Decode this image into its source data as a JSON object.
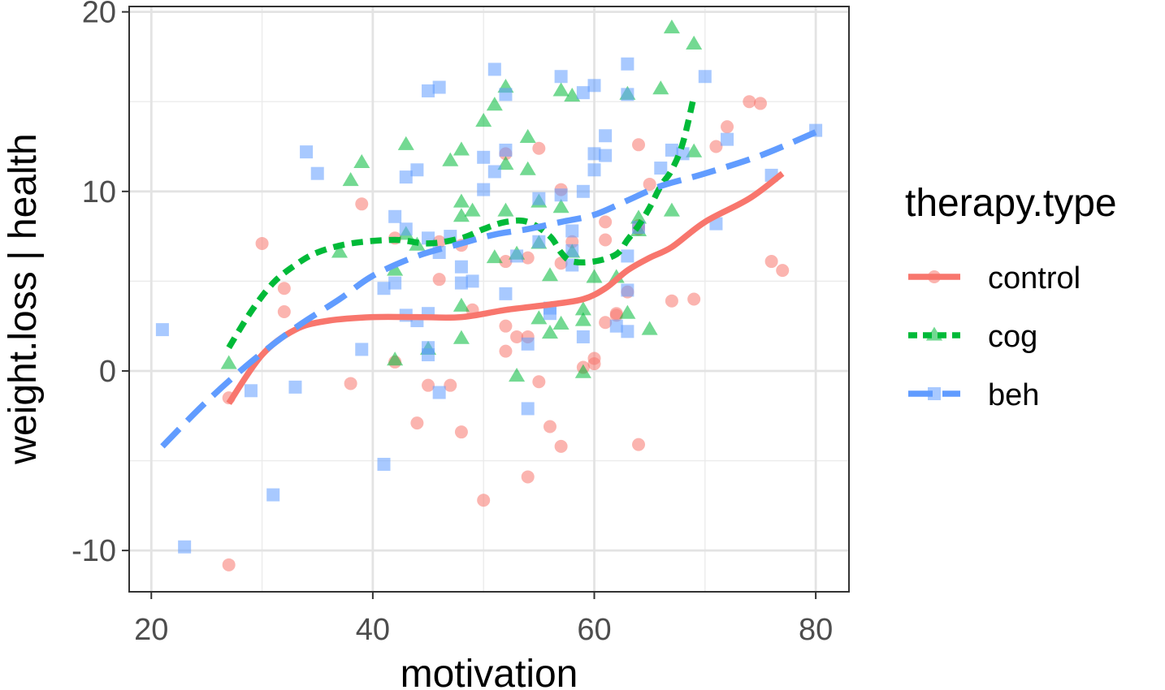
{
  "chart_data": {
    "type": "scatter",
    "title": "",
    "xlabel": "motivation",
    "ylabel": "weight.loss | health",
    "xlim": [
      18,
      83
    ],
    "ylim": [
      -12.3,
      20.3
    ],
    "xticks": [
      20,
      40,
      60,
      80
    ],
    "yticks": [
      -10,
      0,
      10,
      20
    ],
    "xtick_labels": [
      "20",
      "40",
      "60",
      "80"
    ],
    "ytick_labels": [
      "-10",
      "0",
      "10",
      "20"
    ],
    "grid": true,
    "legend": {
      "title": "therapy.type",
      "placement": "right"
    },
    "series": [
      {
        "name": "control",
        "color": "#F8766D",
        "marker": "circle",
        "line_style": "solid",
        "points": [
          [
            27,
            -10.8
          ],
          [
            27,
            -1.5
          ],
          [
            30,
            7.1
          ],
          [
            32,
            4.6
          ],
          [
            32,
            3.3
          ],
          [
            38,
            -0.7
          ],
          [
            39,
            9.3
          ],
          [
            42,
            7.4
          ],
          [
            42,
            0.5
          ],
          [
            44,
            -2.9
          ],
          [
            45,
            -0.8
          ],
          [
            46,
            7.2
          ],
          [
            46,
            5.1
          ],
          [
            47,
            -0.8
          ],
          [
            48,
            7.0
          ],
          [
            48,
            -3.4
          ],
          [
            49,
            3.4
          ],
          [
            50,
            -7.2
          ],
          [
            52,
            12.1
          ],
          [
            52,
            6.1
          ],
          [
            52,
            2.5
          ],
          [
            52,
            1.1
          ],
          [
            53,
            1.9
          ],
          [
            54,
            1.9
          ],
          [
            54,
            6.3
          ],
          [
            54,
            -5.9
          ],
          [
            55,
            12.4
          ],
          [
            55,
            -0.6
          ],
          [
            56,
            -3.1
          ],
          [
            57,
            10.1
          ],
          [
            57,
            6.0
          ],
          [
            57,
            -4.2
          ],
          [
            58,
            7.2
          ],
          [
            59,
            0.2
          ],
          [
            60,
            0.7
          ],
          [
            60,
            0.4
          ],
          [
            61,
            8.3
          ],
          [
            61,
            7.3
          ],
          [
            61,
            2.7
          ],
          [
            62,
            3.2
          ],
          [
            62,
            3.1
          ],
          [
            63,
            4.4
          ],
          [
            64,
            12.6
          ],
          [
            64,
            8.1
          ],
          [
            64,
            7.9
          ],
          [
            64,
            -4.1
          ],
          [
            65,
            10.4
          ],
          [
            67,
            3.9
          ],
          [
            69,
            4.0
          ],
          [
            71,
            12.5
          ],
          [
            72,
            13.6
          ],
          [
            74,
            15.0
          ],
          [
            75,
            14.9
          ],
          [
            76,
            6.1
          ],
          [
            77,
            5.6
          ]
        ],
        "trend": [
          [
            27,
            -1.8
          ],
          [
            30,
            0.9
          ],
          [
            33,
            2.3
          ],
          [
            36,
            2.8
          ],
          [
            40,
            3.0
          ],
          [
            44,
            3.0
          ],
          [
            48,
            3.0
          ],
          [
            52,
            3.4
          ],
          [
            56,
            3.7
          ],
          [
            59,
            4.0
          ],
          [
            61,
            4.6
          ],
          [
            63,
            5.6
          ],
          [
            65,
            6.3
          ],
          [
            67,
            6.9
          ],
          [
            70,
            8.3
          ],
          [
            74,
            9.6
          ],
          [
            77,
            11.0
          ]
        ]
      },
      {
        "name": "cog",
        "color": "#00BA38",
        "marker": "triangle",
        "line_style": "dashed",
        "points": [
          [
            27,
            0.4
          ],
          [
            37,
            6.6
          ],
          [
            38,
            10.6
          ],
          [
            39,
            11.6
          ],
          [
            42,
            5.6
          ],
          [
            42,
            0.6
          ],
          [
            43,
            12.6
          ],
          [
            43,
            7.6
          ],
          [
            44,
            7.0
          ],
          [
            45,
            1.2
          ],
          [
            47,
            11.7
          ],
          [
            48,
            12.3
          ],
          [
            48,
            9.4
          ],
          [
            48,
            8.6
          ],
          [
            48,
            3.6
          ],
          [
            48,
            1.8
          ],
          [
            49,
            8.9
          ],
          [
            50,
            13.9
          ],
          [
            51,
            14.8
          ],
          [
            51,
            6.3
          ],
          [
            52,
            15.8
          ],
          [
            52,
            11.5
          ],
          [
            52,
            8.9
          ],
          [
            53,
            6.5
          ],
          [
            53,
            -0.3
          ],
          [
            54,
            13.0
          ],
          [
            54,
            11.2
          ],
          [
            55,
            9.4
          ],
          [
            55,
            7.1
          ],
          [
            55,
            2.9
          ],
          [
            56,
            5.3
          ],
          [
            56,
            2.1
          ],
          [
            57,
            15.6
          ],
          [
            57,
            9.1
          ],
          [
            57,
            2.6
          ],
          [
            58,
            15.3
          ],
          [
            58,
            6.6
          ],
          [
            59,
            3.4
          ],
          [
            59,
            2.8
          ],
          [
            59,
            -0.1
          ],
          [
            60,
            5.2
          ],
          [
            62,
            5.2
          ],
          [
            63,
            15.4
          ],
          [
            63,
            3.2
          ],
          [
            64,
            8.5
          ],
          [
            64,
            7.8
          ],
          [
            65,
            2.3
          ],
          [
            66,
            15.7
          ],
          [
            67,
            19.1
          ],
          [
            67,
            8.9
          ],
          [
            69,
            18.2
          ],
          [
            69,
            12.2
          ]
        ],
        "trend": [
          [
            27,
            1.3
          ],
          [
            29,
            3.3
          ],
          [
            31,
            4.9
          ],
          [
            33,
            5.9
          ],
          [
            35,
            6.6
          ],
          [
            38,
            7.1
          ],
          [
            42,
            7.3
          ],
          [
            45,
            7.1
          ],
          [
            48,
            7.4
          ],
          [
            50,
            7.9
          ],
          [
            52,
            8.3
          ],
          [
            54,
            8.3
          ],
          [
            56,
            7.5
          ],
          [
            57,
            6.6
          ],
          [
            58,
            6.1
          ],
          [
            60,
            6.1
          ],
          [
            62,
            6.5
          ],
          [
            63,
            7.3
          ],
          [
            64,
            8.1
          ],
          [
            65,
            9.1
          ],
          [
            66,
            10.3
          ],
          [
            67,
            11.2
          ],
          [
            68,
            12.7
          ],
          [
            69,
            15.3
          ]
        ]
      },
      {
        "name": "beh",
        "color": "#619CFF",
        "marker": "square",
        "line_style": "longdash",
        "points": [
          [
            21,
            2.3
          ],
          [
            23,
            -9.8
          ],
          [
            29,
            -1.1
          ],
          [
            31,
            -6.9
          ],
          [
            33,
            -0.9
          ],
          [
            34,
            12.2
          ],
          [
            35,
            11.0
          ],
          [
            39,
            1.2
          ],
          [
            41,
            4.6
          ],
          [
            41,
            -5.2
          ],
          [
            42,
            8.6
          ],
          [
            42,
            4.9
          ],
          [
            43,
            10.8
          ],
          [
            43,
            7.9
          ],
          [
            43,
            3.1
          ],
          [
            44,
            11.2
          ],
          [
            44,
            2.8
          ],
          [
            45,
            15.6
          ],
          [
            45,
            7.4
          ],
          [
            45,
            3.2
          ],
          [
            45,
            1.3
          ],
          [
            45,
            0.9
          ],
          [
            46,
            15.8
          ],
          [
            46,
            6.6
          ],
          [
            46,
            -1.2
          ],
          [
            47,
            7.5
          ],
          [
            48,
            5.8
          ],
          [
            48,
            4.9
          ],
          [
            49,
            5.0
          ],
          [
            50,
            11.9
          ],
          [
            50,
            10.1
          ],
          [
            51,
            16.8
          ],
          [
            51,
            11.1
          ],
          [
            52,
            15.4
          ],
          [
            52,
            12.3
          ],
          [
            52,
            4.3
          ],
          [
            53,
            6.4
          ],
          [
            54,
            1.5
          ],
          [
            54,
            -2.1
          ],
          [
            55,
            7.2
          ],
          [
            55,
            9.6
          ],
          [
            56,
            3.5
          ],
          [
            56,
            3.2
          ],
          [
            57,
            16.4
          ],
          [
            57,
            9.8
          ],
          [
            58,
            7.8
          ],
          [
            58,
            6.7
          ],
          [
            58,
            5.9
          ],
          [
            59,
            15.5
          ],
          [
            59,
            10.0
          ],
          [
            59,
            1.9
          ],
          [
            60,
            15.9
          ],
          [
            60,
            12.1
          ],
          [
            61,
            13.1
          ],
          [
            61,
            12.0
          ],
          [
            60,
            11.2
          ],
          [
            62,
            2.5
          ],
          [
            63,
            17.1
          ],
          [
            63,
            15.4
          ],
          [
            63,
            6.4
          ],
          [
            63,
            4.5
          ],
          [
            63,
            2.2
          ],
          [
            64,
            8.0
          ],
          [
            66,
            11.3
          ],
          [
            67,
            12.3
          ],
          [
            68,
            12.1
          ],
          [
            70,
            16.4
          ],
          [
            71,
            8.2
          ],
          [
            72,
            12.9
          ],
          [
            76,
            10.9
          ],
          [
            80,
            13.4
          ]
        ],
        "trend": [
          [
            21,
            -4.2
          ],
          [
            25,
            -1.7
          ],
          [
            29,
            0.5
          ],
          [
            33,
            2.4
          ],
          [
            37,
            4.0
          ],
          [
            40,
            5.3
          ],
          [
            44,
            6.4
          ],
          [
            48,
            7.1
          ],
          [
            51,
            7.6
          ],
          [
            54,
            7.9
          ],
          [
            57,
            8.3
          ],
          [
            60,
            8.7
          ],
          [
            63,
            9.5
          ],
          [
            66,
            10.3
          ],
          [
            70,
            11.0
          ],
          [
            75,
            12.0
          ],
          [
            80,
            13.3
          ]
        ]
      }
    ]
  }
}
